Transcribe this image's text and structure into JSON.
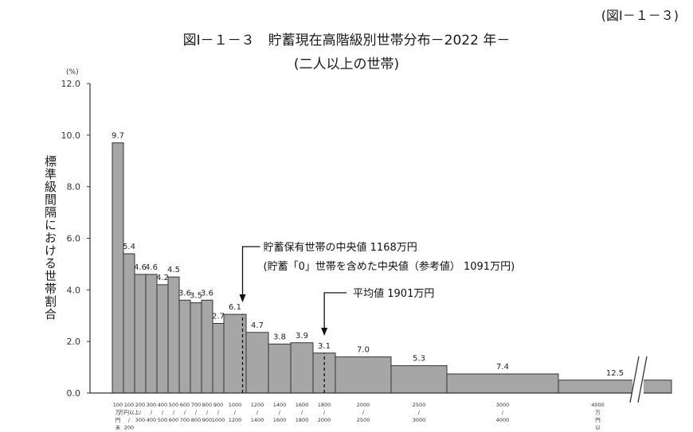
{
  "figure_number": "(図Ⅰ－１－３)",
  "title": "図Ⅰ－１－３　貯蓄現在高階級別世帯分布－2022 年－",
  "subtitle": "(二人以上の世帯)",
  "chart_data": {
    "type": "bar",
    "title": "貯蓄現在高階級別世帯分布－2022 年－",
    "subtitle": "(二人以上の世帯)",
    "ylabel": "標準級間隔における世帯割合",
    "yunit": "(%)",
    "ylim": [
      0,
      12
    ],
    "yticks": [
      "0.0",
      "2.0",
      "4.0",
      "6.0",
      "8.0",
      "10.0",
      "12.0"
    ],
    "x_break_after": 4000,
    "categories": [
      {
        "lo": 0,
        "hi": 100,
        "value": 9.7,
        "label": "9.7"
      },
      {
        "lo": 100,
        "hi": 200,
        "value": 5.4,
        "label": "5.4"
      },
      {
        "lo": 200,
        "hi": 300,
        "value": 4.6,
        "label": "4.6"
      },
      {
        "lo": 300,
        "hi": 400,
        "value": 4.6,
        "label": "4.6"
      },
      {
        "lo": 400,
        "hi": 500,
        "value": 4.2,
        "label": "4.2"
      },
      {
        "lo": 500,
        "hi": 600,
        "value": 4.5,
        "label": "4.5"
      },
      {
        "lo": 600,
        "hi": 700,
        "value": 3.6,
        "label": "3.6"
      },
      {
        "lo": 700,
        "hi": 800,
        "value": 3.5,
        "label": "3.5"
      },
      {
        "lo": 800,
        "hi": 900,
        "value": 3.6,
        "label": "3.6"
      },
      {
        "lo": 900,
        "hi": 1000,
        "value": 2.7,
        "label": "2.7"
      },
      {
        "lo": 1000,
        "hi": 1200,
        "value": 3.05,
        "label": "6.1"
      },
      {
        "lo": 1200,
        "hi": 1400,
        "value": 2.35,
        "label": "4.7"
      },
      {
        "lo": 1400,
        "hi": 1600,
        "value": 1.9,
        "label": "3.8"
      },
      {
        "lo": 1600,
        "hi": 1800,
        "value": 1.95,
        "label": "3.9"
      },
      {
        "lo": 1800,
        "hi": 2000,
        "value": 1.55,
        "label": "3.1"
      },
      {
        "lo": 2000,
        "hi": 2500,
        "value": 1.4,
        "label": "7.0"
      },
      {
        "lo": 2500,
        "hi": 3000,
        "value": 1.06,
        "label": "5.3"
      },
      {
        "lo": 3000,
        "hi": 4000,
        "value": 0.74,
        "label": "7.4"
      },
      {
        "lo": 4000,
        "hi": null,
        "value": 0.5,
        "label": "12.5"
      }
    ],
    "x_tick_labels": [
      {
        "at": 0,
        "lines": [
          "100",
          "万",
          "円",
          "未"
        ]
      },
      {
        "at": 100,
        "lines": [
          "100",
          "万円以上",
          "/",
          "200"
        ]
      },
      {
        "at": 200,
        "lines": [
          "200",
          "/",
          "300"
        ]
      },
      {
        "at": 300,
        "lines": [
          "300",
          "/",
          "400"
        ]
      },
      {
        "at": 400,
        "lines": [
          "400",
          "/",
          "500"
        ]
      },
      {
        "at": 500,
        "lines": [
          "500",
          "/",
          "600"
        ]
      },
      {
        "at": 600,
        "lines": [
          "600",
          "/",
          "700"
        ]
      },
      {
        "at": 700,
        "lines": [
          "700",
          "/",
          "800"
        ]
      },
      {
        "at": 800,
        "lines": [
          "800",
          "/",
          "900"
        ]
      },
      {
        "at": 900,
        "lines": [
          "900",
          "/",
          "1000"
        ]
      },
      {
        "at": 1000,
        "lines": [
          "1000",
          "/",
          "1200"
        ]
      },
      {
        "at": 1200,
        "lines": [
          "1200",
          "/",
          "1400"
        ]
      },
      {
        "at": 1400,
        "lines": [
          "1400",
          "/",
          "1600"
        ]
      },
      {
        "at": 1600,
        "lines": [
          "1600",
          "/",
          "1800"
        ]
      },
      {
        "at": 1800,
        "lines": [
          "1800",
          "/",
          "2000"
        ]
      },
      {
        "at": 2000,
        "lines": [
          "2000",
          "/",
          "2500"
        ]
      },
      {
        "at": 2500,
        "lines": [
          "2500",
          "/",
          "3000"
        ]
      },
      {
        "at": 3000,
        "lines": [
          "3000",
          "/",
          "4000"
        ]
      },
      {
        "at": 4000,
        "lines": [
          "4000",
          "万",
          "円",
          "以"
        ]
      }
    ],
    "annotations": [
      {
        "name": "median",
        "x": 1168,
        "lines": [
          "貯蓄保有世帯の中央値 1168万円",
          "(貯蓄「0」世帯を含めた中央値（参考値） 1091万円)"
        ]
      },
      {
        "name": "mean",
        "x": 1901,
        "lines": [
          "平均値 1901万円"
        ]
      }
    ]
  }
}
